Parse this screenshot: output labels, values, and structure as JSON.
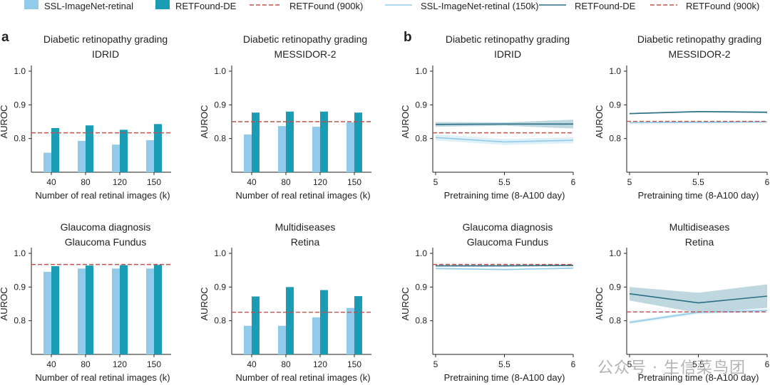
{
  "legend": {
    "bar_items": [
      {
        "label": "SSL-ImageNet-retinal",
        "color": "#92cbe9"
      },
      {
        "label": "RETFound-DE",
        "color": "#1b9cb5"
      },
      {
        "label": "RETFound (900k)",
        "color": "#c0504d"
      }
    ],
    "line_items": [
      {
        "label": "SSL-ImageNet-retinal (150k)",
        "color": "#92cbe9"
      },
      {
        "label": "RETFound-DE",
        "color": "#2b6f86"
      },
      {
        "label": "RETFound (900k)",
        "color": "#c0504d"
      }
    ]
  },
  "panel_labels": {
    "a": "a",
    "b": "b"
  },
  "watermark": "公众号 · 生信菜鸟团",
  "chart_data": [
    {
      "type": "bar",
      "title": "Diabetic retinopathy grading",
      "subtitle": "IDRID",
      "xlabel": "Number of real retinal images (k)",
      "ylabel": "AUROC",
      "categories": [
        "40",
        "80",
        "120",
        "150"
      ],
      "series": [
        {
          "name": "SSL-ImageNet-retinal",
          "values": [
            0.758,
            0.793,
            0.782,
            0.795
          ]
        },
        {
          "name": "RETFound-DE",
          "values": [
            0.831,
            0.839,
            0.826,
            0.843
          ]
        }
      ],
      "reference": {
        "name": "RETFound (900k)",
        "value": 0.817
      },
      "ylim": [
        0.7,
        1.0
      ],
      "yticks": [
        "0.8",
        "0.9",
        "1.0"
      ]
    },
    {
      "type": "bar",
      "title": "Diabetic retinopathy grading",
      "subtitle": "MESSIDOR-2",
      "xlabel": "Number of real retinal images (k)",
      "ylabel": "AUROC",
      "categories": [
        "40",
        "80",
        "120",
        "150"
      ],
      "series": [
        {
          "name": "SSL-ImageNet-retinal",
          "values": [
            0.812,
            0.837,
            0.835,
            0.848
          ]
        },
        {
          "name": "RETFound-DE",
          "values": [
            0.877,
            0.88,
            0.88,
            0.877
          ]
        }
      ],
      "reference": {
        "name": "RETFound (900k)",
        "value": 0.85
      },
      "ylim": [
        0.7,
        1.0
      ],
      "yticks": [
        "0.8",
        "0.9",
        "1.0"
      ]
    },
    {
      "type": "line",
      "title": "Diabetic retinopathy grading",
      "subtitle": "IDRID",
      "xlabel": "Pretraining time (8-A100 day)",
      "ylabel": "AUROC",
      "x": [
        5,
        5.5,
        6
      ],
      "xticks": [
        "5",
        "5.5",
        "6"
      ],
      "series": [
        {
          "name": "SSL-ImageNet-retinal (150k)",
          "values": [
            0.803,
            0.79,
            0.795
          ],
          "band": [
            0.009,
            0.009,
            0.009
          ]
        },
        {
          "name": "RETFound-DE",
          "values": [
            0.842,
            0.843,
            0.843
          ],
          "band": [
            0.007,
            0.005,
            0.013
          ]
        }
      ],
      "reference": {
        "name": "RETFound (900k)",
        "value": 0.817
      },
      "ylim": [
        0.7,
        1.0
      ],
      "yticks": [
        "0.8",
        "0.9",
        "1.0"
      ]
    },
    {
      "type": "line",
      "title": "Diabetic retinopathy grading",
      "subtitle": "MESSIDOR-2",
      "xlabel": "Pretraining time (8-A100 day)",
      "ylabel": "AUROC",
      "x": [
        5,
        5.5,
        6
      ],
      "xticks": [
        "5",
        "5.5",
        "6"
      ],
      "series": [
        {
          "name": "SSL-ImageNet-retinal (150k)",
          "values": [
            0.847,
            0.848,
            0.849
          ],
          "band": [
            0.002,
            0.002,
            0.002
          ]
        },
        {
          "name": "RETFound-DE",
          "values": [
            0.874,
            0.88,
            0.878
          ],
          "band": [
            0.002,
            0.002,
            0.003
          ]
        }
      ],
      "reference": {
        "name": "RETFound (900k)",
        "value": 0.851
      },
      "ylim": [
        0.7,
        1.0
      ],
      "yticks": [
        "0.8",
        "0.9",
        "1.0"
      ]
    },
    {
      "type": "bar",
      "title": "Glaucoma diagnosis",
      "subtitle": "Glaucoma Fundus",
      "xlabel": "Number of real retinal images (k)",
      "ylabel": "AUROC",
      "categories": [
        "40",
        "80",
        "120",
        "150"
      ],
      "series": [
        {
          "name": "SSL-ImageNet-retinal",
          "values": [
            0.945,
            0.955,
            0.955,
            0.955
          ]
        },
        {
          "name": "RETFound-DE",
          "values": [
            0.962,
            0.964,
            0.965,
            0.966
          ]
        }
      ],
      "reference": {
        "name": "RETFound (900k)",
        "value": 0.967
      },
      "ylim": [
        0.7,
        1.0
      ],
      "yticks": [
        "0.8",
        "0.9",
        "1.0"
      ]
    },
    {
      "type": "bar",
      "title": "Multidiseases",
      "subtitle": "Retina",
      "xlabel": "Number of real retinal images (k)",
      "ylabel": "AUROC",
      "categories": [
        "40",
        "80",
        "120",
        "150"
      ],
      "series": [
        {
          "name": "SSL-ImageNet-retinal",
          "values": [
            0.785,
            0.785,
            0.81,
            0.838
          ]
        },
        {
          "name": "RETFound-DE",
          "values": [
            0.872,
            0.9,
            0.891,
            0.873
          ]
        }
      ],
      "reference": {
        "name": "RETFound (900k)",
        "value": 0.825
      },
      "ylim": [
        0.7,
        1.0
      ],
      "yticks": [
        "0.8",
        "0.9",
        "1.0"
      ]
    },
    {
      "type": "line",
      "title": "Glaucoma diagnosis",
      "subtitle": "Glaucoma Fundus",
      "xlabel": "Pretraining time (8-A100 day)",
      "ylabel": "AUROC",
      "x": [
        5,
        5.5,
        6
      ],
      "xticks": [
        "5",
        "5.5",
        "6"
      ],
      "series": [
        {
          "name": "SSL-ImageNet-retinal (150k)",
          "values": [
            0.955,
            0.952,
            0.956
          ],
          "band": [
            0.002,
            0.002,
            0.002
          ]
        },
        {
          "name": "RETFound-DE",
          "values": [
            0.963,
            0.963,
            0.964
          ],
          "band": [
            0.002,
            0.002,
            0.002
          ]
        }
      ],
      "reference": {
        "name": "RETFound (900k)",
        "value": 0.967
      },
      "ylim": [
        0.7,
        1.0
      ],
      "yticks": [
        "0.8",
        "0.9",
        "1.0"
      ]
    },
    {
      "type": "line",
      "title": "Multidiseases",
      "subtitle": "Retina",
      "xlabel": "Pretraining time (8-A100 day)",
      "ylabel": "AUROC",
      "x": [
        5,
        5.5,
        6
      ],
      "xticks": [
        "5",
        "5.5",
        "6"
      ],
      "series": [
        {
          "name": "SSL-ImageNet-retinal (150k)",
          "values": [
            0.795,
            0.825,
            0.83
          ],
          "band": [
            0.005,
            0.005,
            0.005
          ]
        },
        {
          "name": "RETFound-DE",
          "values": [
            0.88,
            0.853,
            0.873
          ],
          "band": [
            0.02,
            0.03,
            0.035
          ]
        }
      ],
      "reference": {
        "name": "RETFound (900k)",
        "value": 0.826
      },
      "ylim": [
        0.7,
        1.0
      ],
      "yticks": [
        "0.8",
        "0.9",
        "1.0"
      ]
    }
  ]
}
